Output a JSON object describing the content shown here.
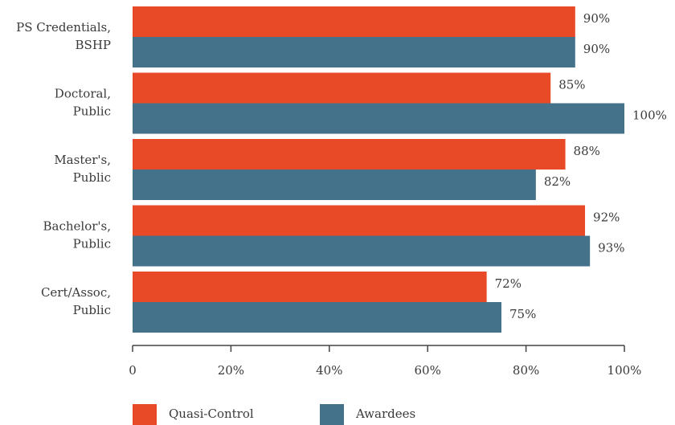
{
  "chart_data": {
    "type": "hbar",
    "categories": [
      [
        "PS Credentials,",
        "BSHP"
      ],
      [
        "Doctoral,",
        "Public"
      ],
      [
        "Master's,",
        "Public"
      ],
      [
        "Bachelor's,",
        "Public"
      ],
      [
        "Cert/Assoc,",
        "Public"
      ]
    ],
    "series": [
      {
        "name": "Quasi-Control",
        "color": "#e84a27",
        "values": [
          90,
          85,
          88,
          92,
          72
        ],
        "value_labels": [
          "90%",
          "85%",
          "88%",
          "92%",
          "72%"
        ]
      },
      {
        "name": "Awardees",
        "color": "#43728a",
        "values": [
          90,
          100,
          82,
          93,
          75
        ],
        "value_labels": [
          "90%",
          "100%",
          "82%",
          "93%",
          "75%"
        ]
      }
    ],
    "xlim": [
      0,
      100
    ],
    "xticks": [
      0,
      {
        "value": 20,
        "label": "20%"
      },
      {
        "value": 40,
        "label": "40%"
      },
      {
        "value": 60,
        "label": "60%"
      },
      {
        "value": 80,
        "label": "80%"
      },
      {
        "value": 100,
        "label": "100%"
      }
    ],
    "legend": "bottom-left"
  }
}
